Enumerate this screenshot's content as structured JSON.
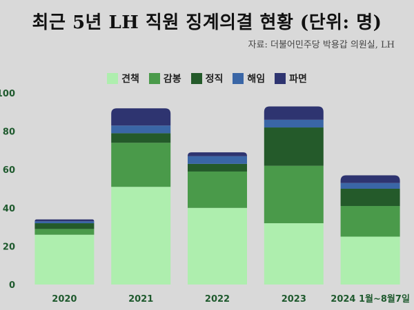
{
  "title": "최근 5년 LH 직원 징계의결 현황 (단위: 명)",
  "source": "자료: 더불어민주당 박용갑 의원실, LH",
  "colors": {
    "견책": "#aeeeae",
    "감봉": "#4a9a4a",
    "정직": "#245a2a",
    "해임": "#3a66a6",
    "파면": "#2e3470"
  },
  "chart_data": {
    "type": "bar",
    "stacked": true,
    "categories": [
      "2020",
      "2021",
      "2022",
      "2023",
      "2024 1월~8월7일"
    ],
    "series": [
      {
        "name": "견책",
        "values": [
          26,
          51,
          40,
          32,
          25
        ]
      },
      {
        "name": "감봉",
        "values": [
          3,
          23,
          19,
          30,
          16
        ]
      },
      {
        "name": "정직",
        "values": [
          3,
          5,
          4,
          20,
          9
        ]
      },
      {
        "name": "해임",
        "values": [
          1,
          4,
          4,
          4,
          3
        ]
      },
      {
        "name": "파면",
        "values": [
          1,
          9,
          2,
          7,
          4
        ]
      }
    ],
    "ylim": [
      0,
      100
    ],
    "yticks": [
      0,
      20,
      40,
      60,
      80,
      100
    ],
    "legend_position": "top-center",
    "grid": false
  }
}
